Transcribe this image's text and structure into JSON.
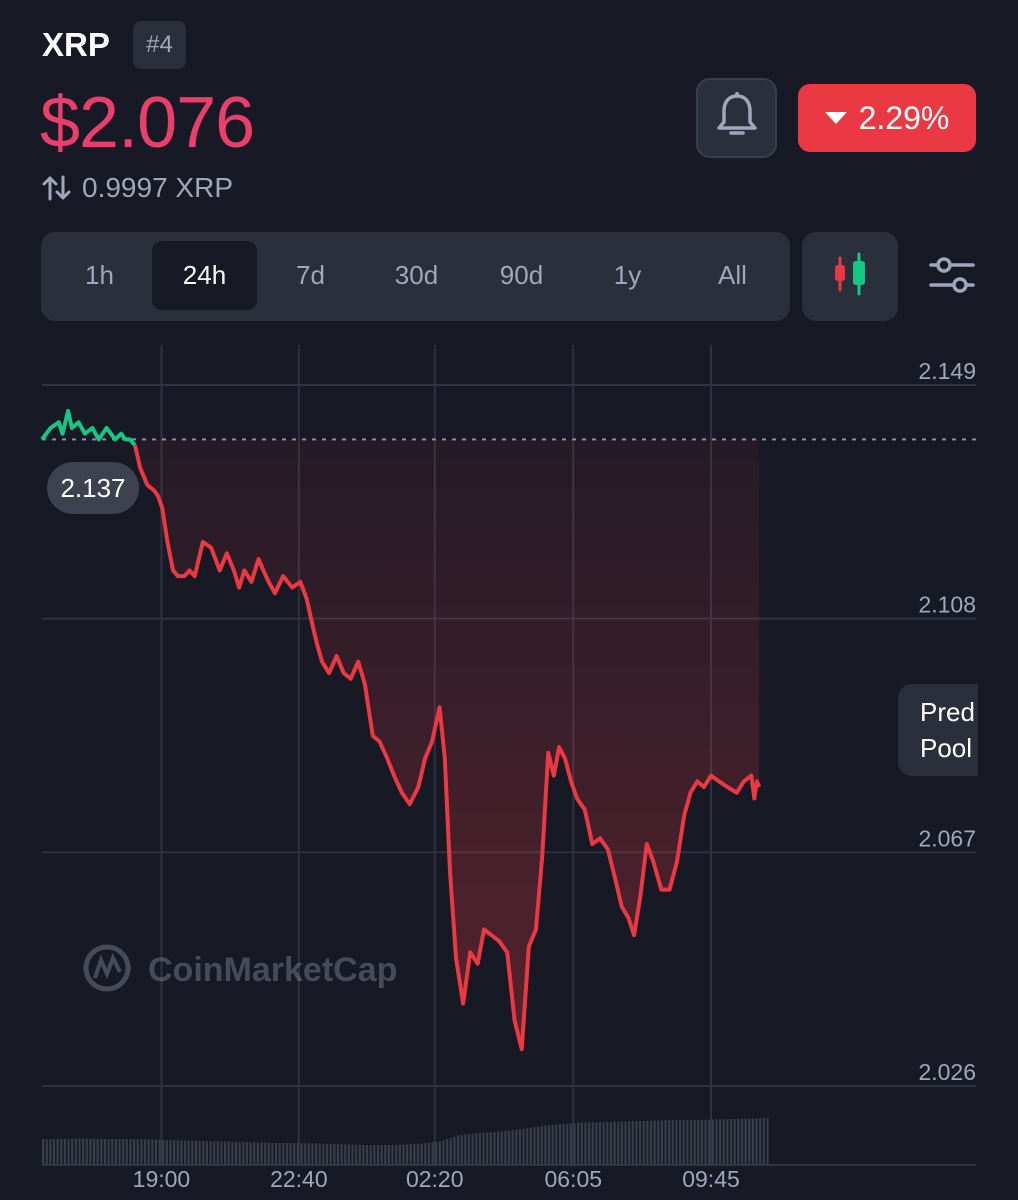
{
  "coin": {
    "name": "XRP",
    "rank": "#4"
  },
  "price": {
    "value": "$2.076",
    "conversion": "0.9997 XRP",
    "change": "2.29%",
    "change_direction": "down"
  },
  "icons": {
    "bell": "bell-icon",
    "swap": "swap-vertical-icon",
    "candles": "candlestick-icon",
    "settings": "sliders-icon",
    "logo": "coinmarketcap-logo"
  },
  "colors": {
    "up": "#16c784",
    "down": "#ea3943",
    "price": "#ea3f6d",
    "panel": "#2b2f3b",
    "background": "#171924"
  },
  "time_ranges": {
    "options": [
      "1h",
      "24h",
      "7d",
      "30d",
      "90d",
      "1y",
      "All"
    ],
    "selected": "24h"
  },
  "side_panel": {
    "label_line1": "Pred",
    "label_line2": "Pool"
  },
  "watermark": "CoinMarketCap",
  "chart_data": {
    "type": "line",
    "title": "",
    "ylabel": "",
    "xlabel": "",
    "open_price": 2.137,
    "open_price_label": "2.137",
    "ylim": [
      2.0155,
      2.1545
    ],
    "y_ticks": [
      {
        "value": 2.149,
        "label": "2.149"
      },
      {
        "value": 2.108,
        "label": "2.108"
      },
      {
        "value": 2.067,
        "label": "2.067"
      },
      {
        "value": 2.026,
        "label": "2.026"
      }
    ],
    "x_ticks": [
      "19:00",
      "22:40",
      "02:20",
      "06:05",
      "09:45"
    ],
    "grid": true,
    "x_range_hours": [
      0,
      19.5
    ],
    "x_tick_hours": [
      3.2,
      6.88,
      10.52,
      14.23,
      17.92
    ],
    "series": [
      {
        "hours": [
          0.0,
          0.23,
          0.45,
          0.55,
          0.7,
          0.8,
          0.98,
          1.15,
          1.35,
          1.52,
          1.73,
          1.96,
          2.12,
          2.23,
          2.35,
          2.49,
          2.63,
          2.82,
          3.01,
          3.11,
          3.22,
          3.36,
          3.51,
          3.64,
          3.81,
          3.95,
          4.09,
          4.31,
          4.53,
          4.76,
          4.95,
          5.14,
          5.28,
          5.42,
          5.61,
          5.8,
          5.93,
          6.07,
          6.24,
          6.46,
          6.7,
          6.92,
          7.09,
          7.26,
          7.37,
          7.5,
          7.69,
          7.89,
          8.08,
          8.27,
          8.47,
          8.65,
          8.86,
          9.04,
          9.25,
          9.43,
          9.64,
          9.85,
          10.08,
          10.26,
          10.45,
          10.65,
          10.79,
          10.93,
          11.09,
          11.28,
          11.47,
          11.67,
          11.84,
          12.04,
          12.24,
          12.46,
          12.66,
          12.85,
          13.04,
          13.23,
          13.4,
          13.56,
          13.71,
          13.85,
          14.01,
          14.17,
          14.33,
          14.54,
          14.74,
          14.95,
          15.16,
          15.35,
          15.53,
          15.71,
          15.86,
          16.03,
          16.2,
          16.37,
          16.59,
          16.81,
          17.01,
          17.2,
          17.37,
          17.55,
          17.73,
          17.92,
          18.13,
          18.36,
          18.61,
          18.8,
          19.0,
          19.08,
          19.15,
          19.21
        ],
        "values": [
          2.137,
          2.139,
          2.14,
          2.138,
          2.142,
          2.139,
          2.14,
          2.138,
          2.139,
          2.137,
          2.139,
          2.137,
          2.138,
          2.137,
          2.137,
          2.136,
          2.132,
          2.129,
          2.128,
          2.127,
          2.125,
          2.119,
          2.114,
          2.113,
          2.113,
          2.114,
          2.113,
          2.119,
          2.118,
          2.114,
          2.117,
          2.114,
          2.111,
          2.114,
          2.112,
          2.116,
          2.114,
          2.112,
          2.11,
          2.113,
          2.111,
          2.112,
          2.109,
          2.104,
          2.101,
          2.098,
          2.096,
          2.099,
          2.096,
          2.095,
          2.098,
          2.094,
          2.085,
          2.084,
          2.081,
          2.078,
          2.075,
          2.073,
          2.076,
          2.081,
          2.084,
          2.09,
          2.081,
          2.061,
          2.046,
          2.038,
          2.047,
          2.045,
          2.051,
          2.05,
          2.049,
          2.047,
          2.035,
          2.03,
          2.048,
          2.051,
          2.064,
          2.082,
          2.078,
          2.083,
          2.081,
          2.077,
          2.074,
          2.072,
          2.066,
          2.067,
          2.065,
          2.06,
          2.055,
          2.053,
          2.05,
          2.057,
          2.066,
          2.063,
          2.058,
          2.058,
          2.063,
          2.071,
          2.075,
          2.077,
          2.076,
          2.078,
          2.077,
          2.076,
          2.075,
          2.077,
          2.078,
          2.074,
          2.077,
          2.076
        ]
      }
    ],
    "volume": {
      "relative_values": [
        0.52,
        0.52,
        0.53,
        0.52,
        0.52,
        0.52,
        0.51,
        0.5,
        0.49,
        0.48,
        0.47,
        0.46,
        0.45,
        0.44,
        0.44,
        0.43,
        0.42,
        0.41,
        0.4,
        0.4,
        0.41,
        0.43,
        0.48,
        0.6,
        0.64,
        0.66,
        0.7,
        0.75,
        0.8,
        0.83,
        0.85,
        0.86,
        0.87,
        0.88,
        0.89,
        0.9,
        0.9,
        0.91,
        0.92,
        0.93,
        0.94
      ]
    }
  }
}
